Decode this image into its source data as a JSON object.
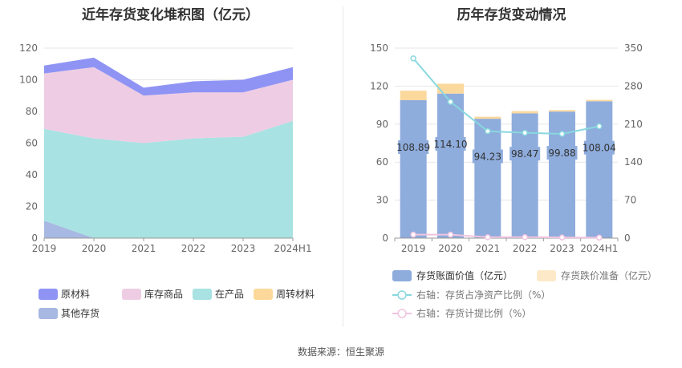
{
  "footer": {
    "source_label": "数据来源：恒生聚源"
  },
  "colors": {
    "raw_materials": "#8f94f4",
    "goods": "#eecde4",
    "wip": "#a8e2e2",
    "turnover": "#fcd99a",
    "other": "#a7b9e2",
    "book_value": "#8eacdc",
    "impairment": "#fbd89c",
    "ratio_line": "#88d8de",
    "provision_line": "#f0c4e0"
  },
  "chart_data": [
    {
      "type": "area",
      "title": "近年存货变化堆积图（亿元）",
      "x": [
        "2019",
        "2020",
        "2021",
        "2022",
        "2023",
        "2024H1"
      ],
      "ylim": [
        0,
        120
      ],
      "yticks": [
        0,
        20,
        40,
        60,
        80,
        100,
        120
      ],
      "grid": true,
      "legend_position": "bottom",
      "series": [
        {
          "name": "其他存货",
          "key": "other",
          "values": [
            11,
            0,
            0,
            0,
            0,
            0
          ]
        },
        {
          "name": "在产品",
          "key": "wip",
          "values": [
            58,
            63,
            60,
            63,
            64,
            74
          ]
        },
        {
          "name": "周转材料",
          "key": "turnover",
          "values": [
            0,
            0,
            0,
            0,
            0,
            0
          ]
        },
        {
          "name": "库存商品",
          "key": "goods",
          "values": [
            35,
            45,
            30,
            29,
            28,
            26
          ]
        },
        {
          "name": "原材料",
          "key": "raw_materials",
          "values": [
            5,
            6,
            5,
            7,
            8,
            8
          ]
        }
      ],
      "legend": [
        {
          "name": "原材料",
          "key": "raw_materials"
        },
        {
          "name": "库存商品",
          "key": "goods"
        },
        {
          "name": "在产品",
          "key": "wip"
        },
        {
          "name": "周转材料",
          "key": "turnover"
        },
        {
          "name": "其他存货",
          "key": "other"
        }
      ]
    },
    {
      "type": "bar",
      "title": "历年存货变动情况",
      "categories": [
        "2019",
        "2020",
        "2021",
        "2022",
        "2023",
        "2024H1"
      ],
      "ylim": [
        0,
        150
      ],
      "yticks": [
        0,
        30,
        60,
        90,
        120,
        150
      ],
      "y2lim": [
        0,
        350
      ],
      "y2ticks": [
        0,
        70,
        140,
        210,
        280,
        350
      ],
      "grid": true,
      "legend_position": "bottom",
      "series": [
        {
          "name": "存货账面价值（亿元）",
          "key": "book_value",
          "axis": "left",
          "type": "bar",
          "values": [
            108.89,
            114.1,
            94.23,
            98.47,
            99.88,
            108.04
          ],
          "labels": [
            "108.89",
            "114.10",
            "94.23",
            "98.47",
            "99.88",
            "108.04"
          ]
        },
        {
          "name": "存货跌价准备（亿元）",
          "key": "impairment",
          "axis": "left",
          "type": "bar",
          "values": [
            7.5,
            7.8,
            1.6,
            1.8,
            1.2,
            1.1
          ]
        },
        {
          "name": "右轴：存货占净资产比例（%）",
          "key": "ratio_line",
          "axis": "right",
          "type": "line",
          "values": [
            331,
            251,
            197,
            194,
            192,
            206
          ]
        },
        {
          "name": "右轴：存货计提比例（%）",
          "key": "provision_line",
          "axis": "right",
          "type": "line",
          "values": [
            6.5,
            6.4,
            1.7,
            1.8,
            1.2,
            1.0
          ]
        }
      ]
    }
  ]
}
